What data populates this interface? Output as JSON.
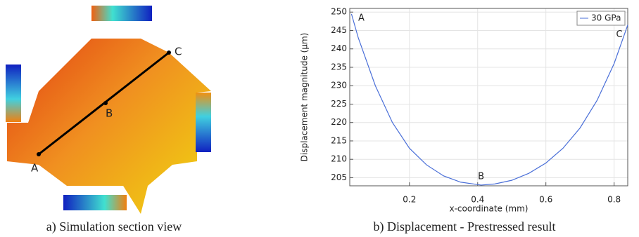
{
  "chart_data": {
    "type": "line",
    "x_label": "x-coordinate (mm)",
    "y_label": "Displacement magnitude (µm)",
    "x": [
      0.03,
      0.05,
      0.1,
      0.15,
      0.2,
      0.25,
      0.3,
      0.35,
      0.41,
      0.45,
      0.5,
      0.55,
      0.6,
      0.65,
      0.7,
      0.75,
      0.8,
      0.84
    ],
    "series": [
      {
        "name": "30 GPa",
        "color": "#4a6fd8",
        "values": [
          249.5,
          243,
          230,
          220,
          213,
          208.5,
          205.5,
          203.8,
          203,
          203.3,
          204.3,
          206.2,
          209,
          213,
          218.5,
          226,
          236,
          246.5
        ]
      }
    ],
    "annotations": [
      "A",
      "B",
      "C"
    ],
    "xlim": [
      0.025,
      0.84
    ],
    "xticks": [
      0.2,
      0.4,
      0.6,
      0.8
    ],
    "ylim": [
      202.8,
      251
    ],
    "yticks": [
      205,
      210,
      215,
      220,
      225,
      230,
      235,
      240,
      245,
      250
    ],
    "grid": true,
    "legend": "top-right"
  },
  "figure": {
    "section_labels": [
      "A",
      "B",
      "C"
    ],
    "left_caption": "a) Simulation section view",
    "right_caption": "b) Displacement - Prestressed result"
  }
}
